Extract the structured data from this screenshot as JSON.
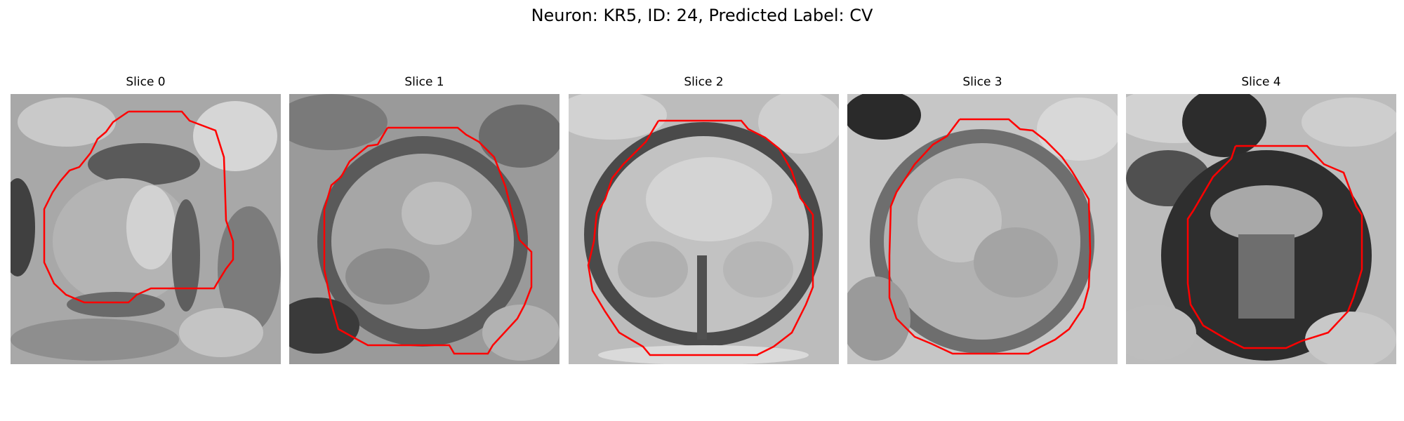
{
  "figure": {
    "title": "Neuron: KR5, ID: 24, Predicted Label: CV"
  },
  "panels": [
    {
      "title": "Slice 0"
    },
    {
      "title": "Slice 1"
    },
    {
      "title": "Slice 2"
    },
    {
      "title": "Slice 3"
    },
    {
      "title": "Slice 4"
    }
  ],
  "colors": {
    "contour": "#ff0000",
    "colormap": "grayscale"
  }
}
